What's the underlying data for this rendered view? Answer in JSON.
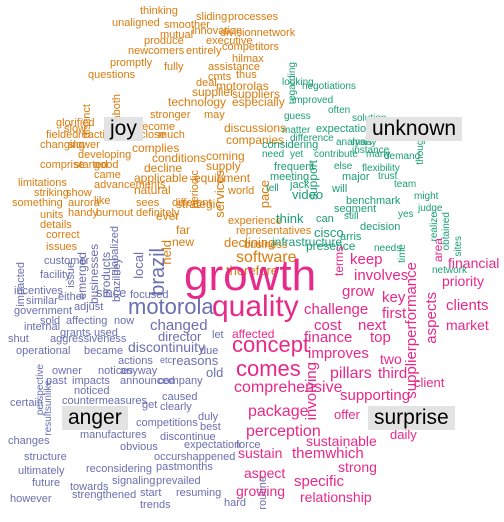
{
  "colors": {
    "joy": "#d97b0d",
    "unknown": "#1b9e77",
    "anger": "#6a6fb0",
    "surprise": "#e7298a",
    "label_bg": "#e3e3e3"
  },
  "groups": {
    "joy": {
      "label": "joy",
      "words": [
        "thinking",
        "sliding",
        "processes",
        "unaligned",
        "smoother",
        "innovation",
        "divisionnetwork",
        "mutual",
        "executive",
        "produce",
        "competitors",
        "newcomers",
        "entirely",
        "promptly",
        "hilmax",
        "assistance",
        "questions",
        "fully",
        "cmts",
        "thus",
        "deal",
        "motorolas",
        "supplier",
        "suppliers",
        "technology",
        "especially",
        "stronger",
        "may",
        "become",
        "much",
        "close",
        "discussions",
        "companies",
        "developing",
        "glorified",
        "slow",
        "fielded",
        "reaction",
        "changing",
        "slower",
        "comprise",
        "started",
        "good",
        "came",
        "coming",
        "complies",
        "conditions",
        "supply",
        "decline",
        "natural",
        "periodic",
        "equipment",
        "strategic",
        "applicable",
        "limitations",
        "striking",
        "show",
        "advancements",
        "burnout",
        "definitely",
        "ever",
        "something",
        "units",
        "handy",
        "details",
        "correct",
        "issues",
        "distinct",
        "dnaboth",
        "representatives",
        "experience",
        "far",
        "new",
        "declining",
        "services",
        "pace",
        "software",
        "therefore",
        "business",
        "world",
        "different",
        "like",
        "aurora",
        "sees",
        "held",
        "lives",
        "product",
        "also",
        "going"
      ]
    },
    "unknown": {
      "label": "unknown",
      "words": [
        "regarding",
        "negotiations",
        "looking",
        "often",
        "improved",
        "solution",
        "guess",
        "expectations",
        "matter",
        "difference",
        "instance",
        "contribute",
        "many",
        "considering",
        "frequent",
        "need",
        "yet",
        "video",
        "meeting",
        "tell",
        "jack",
        "many",
        "flexibility",
        "benchmark",
        "segment",
        "trust",
        "team",
        "might",
        "judge",
        "yes",
        "still",
        "decision",
        "arris",
        "needs",
        "presence",
        "cisco",
        "think",
        "infrastructure",
        "can",
        "will",
        "major",
        "support",
        "realize",
        "obtained",
        "sites",
        "network",
        "time",
        "demand",
        "various",
        "though",
        "analysis",
        "else",
        "tea"
      ]
    },
    "anger": {
      "label": "anger",
      "words": [
        "motorola",
        "brazil",
        "discontinuity",
        "changed",
        "local",
        "model",
        "customer",
        "impacted",
        "facility",
        "incentives",
        "similar",
        "government",
        "internal",
        "shut",
        "operational",
        "owner",
        "perspective",
        "resultsunlike",
        "certain",
        "changes",
        "structure",
        "ultimately",
        "however",
        "future",
        "towards",
        "strengthened",
        "signaling",
        "prevailed",
        "start",
        "trends",
        "resuming",
        "reconsidering",
        "pastmonths",
        "occurshappened",
        "obvious",
        "discontinue",
        "expectation",
        "competitions",
        "manufactures",
        "countermeasures",
        "notices",
        "noticed",
        "clearly",
        "company",
        "even",
        "director",
        "reasons",
        "actions",
        "anyway",
        "etc",
        "became",
        "past",
        "impacts",
        "sold",
        "grants",
        "used",
        "affecting",
        "either",
        "adjust",
        "aggressiveness",
        "emerged",
        "businesses",
        "products",
        "brazilhey",
        "since",
        "focused",
        "now",
        "issue",
        "globalized",
        "duly",
        "best",
        "force",
        "routine",
        "hard",
        "caused",
        "announced",
        "get",
        "due",
        "let",
        "old",
        "sustain"
      ]
    },
    "surprise": {
      "label": "surprise",
      "words": [
        "growth",
        "quality",
        "concept",
        "comes",
        "comprehensive",
        "package",
        "perception",
        "growing",
        "sustain",
        "aspect",
        "affected",
        "finance",
        "cost",
        "challenge",
        "grow",
        "involves",
        "keep",
        "terms",
        "area",
        "financial",
        "priority",
        "clients",
        "market",
        "client",
        "aspects",
        "supplierperformance",
        "first",
        "next",
        "top",
        "key",
        "third",
        "two",
        "pillars",
        "improves",
        "involving",
        "supporting",
        "offer",
        "daily",
        "themwhich",
        "strong",
        "specific",
        "relationship",
        "sustainable"
      ]
    }
  }
}
